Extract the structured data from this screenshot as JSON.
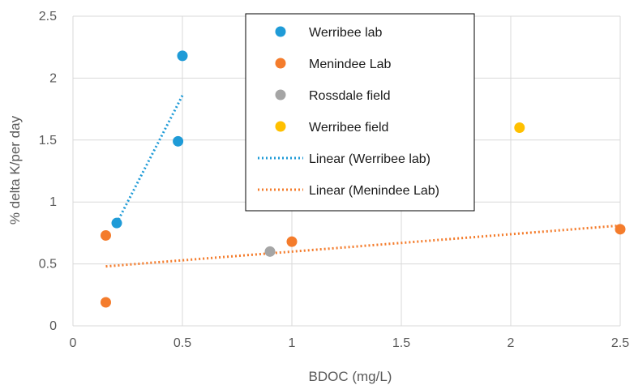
{
  "chart_data": {
    "type": "scatter",
    "title": "",
    "xlabel": "BDOC (mg/L)",
    "ylabel": "% delta K/per day",
    "xlim": [
      0,
      2.5
    ],
    "ylim": [
      0,
      2.5
    ],
    "x_ticks": [
      "0",
      "0.5",
      "1",
      "1.5",
      "2",
      "2.5"
    ],
    "y_ticks": [
      "0",
      "0.5",
      "1",
      "1.5",
      "2",
      "2.5"
    ],
    "grid": true,
    "legend_position": "top-center",
    "series": [
      {
        "name": "Werribee lab",
        "color": "#1f9bd7",
        "marker": "circle",
        "points": [
          [
            0.2,
            0.83
          ],
          [
            0.48,
            1.49
          ],
          [
            0.5,
            2.18
          ]
        ]
      },
      {
        "name": "Menindee Lab",
        "color": "#f47c2c",
        "marker": "circle",
        "points": [
          [
            0.15,
            0.73
          ],
          [
            0.15,
            0.19
          ],
          [
            1.0,
            0.68
          ],
          [
            2.5,
            0.78
          ]
        ]
      },
      {
        "name": "Rossdale field",
        "color": "#a5a5a5",
        "marker": "circle",
        "points": [
          [
            0.9,
            0.6
          ]
        ]
      },
      {
        "name": "Werribee field",
        "color": "#ffc000",
        "marker": "circle",
        "points": [
          [
            2.04,
            1.6
          ]
        ]
      }
    ],
    "trendlines": [
      {
        "name": "Linear (Werribee lab)",
        "color": "#1f9bd7",
        "style": "dotted",
        "from": [
          0.2,
          0.83
        ],
        "to": [
          0.5,
          1.86
        ]
      },
      {
        "name": "Linear (Menindee Lab)",
        "color": "#f47c2c",
        "style": "dotted",
        "from": [
          0.15,
          0.48
        ],
        "to": [
          2.5,
          0.81
        ]
      }
    ]
  }
}
